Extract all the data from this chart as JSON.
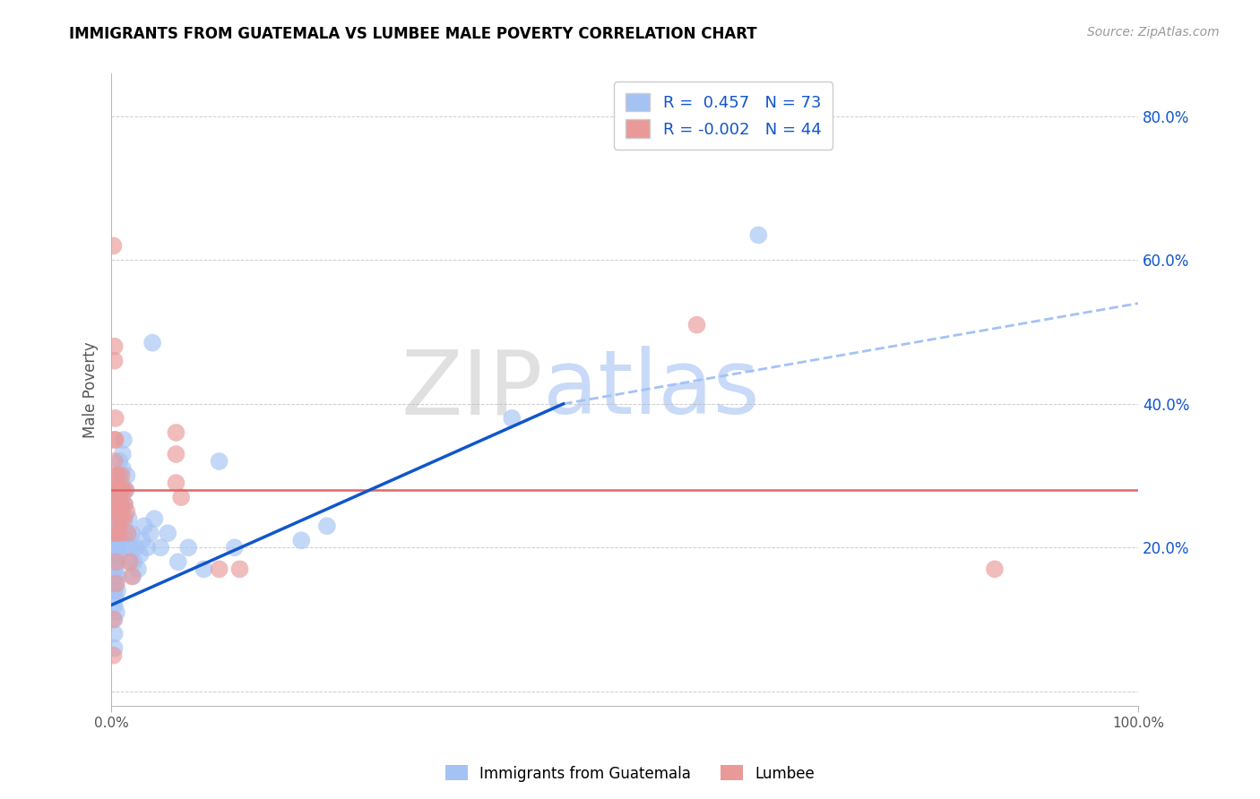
{
  "title": "IMMIGRANTS FROM GUATEMALA VS LUMBEE MALE POVERTY CORRELATION CHART",
  "source": "Source: ZipAtlas.com",
  "ylabel": "Male Poverty",
  "xlim": [
    0,
    1.0
  ],
  "ylim": [
    -0.02,
    0.86
  ],
  "ytick_positions": [
    0.0,
    0.2,
    0.4,
    0.6,
    0.8
  ],
  "yticklabels_right": [
    "",
    "20.0%",
    "40.0%",
    "60.0%",
    "80.0%"
  ],
  "blue_color": "#a4c2f4",
  "pink_color": "#ea9999",
  "blue_line_color": "#1155cc",
  "pink_line_color": "#e06666",
  "dashed_line_color": "#a4c2f4",
  "grid_color": "#b7b7b7",
  "title_color": "#000000",
  "source_color": "#999999",
  "right_tick_color": "#1155cc",
  "legend_r_blue": "0.457",
  "legend_n_blue": "73",
  "legend_r_pink": "-0.002",
  "legend_n_pink": "44",
  "legend_label_blue": "Immigrants from Guatemala",
  "legend_label_pink": "Lumbee",
  "watermark_zip": "ZIP",
  "watermark_atlas": "atlas",
  "blue_scatter": [
    [
      0.003,
      0.14
    ],
    [
      0.003,
      0.12
    ],
    [
      0.003,
      0.1
    ],
    [
      0.003,
      0.08
    ],
    [
      0.003,
      0.06
    ],
    [
      0.003,
      0.16
    ],
    [
      0.003,
      0.18
    ],
    [
      0.003,
      0.2
    ],
    [
      0.003,
      0.22
    ],
    [
      0.003,
      0.24
    ],
    [
      0.003,
      0.26
    ],
    [
      0.003,
      0.28
    ],
    [
      0.004,
      0.13
    ],
    [
      0.004,
      0.15
    ],
    [
      0.004,
      0.17
    ],
    [
      0.004,
      0.19
    ],
    [
      0.005,
      0.21
    ],
    [
      0.005,
      0.23
    ],
    [
      0.005,
      0.25
    ],
    [
      0.005,
      0.27
    ],
    [
      0.005,
      0.11
    ],
    [
      0.006,
      0.14
    ],
    [
      0.006,
      0.16
    ],
    [
      0.006,
      0.18
    ],
    [
      0.006,
      0.2
    ],
    [
      0.007,
      0.22
    ],
    [
      0.007,
      0.24
    ],
    [
      0.007,
      0.26
    ],
    [
      0.008,
      0.28
    ],
    [
      0.008,
      0.3
    ],
    [
      0.008,
      0.32
    ],
    [
      0.008,
      0.19
    ],
    [
      0.009,
      0.21
    ],
    [
      0.009,
      0.23
    ],
    [
      0.01,
      0.25
    ],
    [
      0.01,
      0.27
    ],
    [
      0.01,
      0.29
    ],
    [
      0.011,
      0.31
    ],
    [
      0.011,
      0.33
    ],
    [
      0.012,
      0.35
    ],
    [
      0.012,
      0.22
    ],
    [
      0.013,
      0.24
    ],
    [
      0.013,
      0.26
    ],
    [
      0.014,
      0.28
    ],
    [
      0.015,
      0.3
    ],
    [
      0.015,
      0.2
    ],
    [
      0.016,
      0.22
    ],
    [
      0.017,
      0.24
    ],
    [
      0.018,
      0.18
    ],
    [
      0.019,
      0.2
    ],
    [
      0.02,
      0.22
    ],
    [
      0.021,
      0.16
    ],
    [
      0.022,
      0.18
    ],
    [
      0.024,
      0.2
    ],
    [
      0.026,
      0.17
    ],
    [
      0.028,
      0.19
    ],
    [
      0.03,
      0.21
    ],
    [
      0.032,
      0.23
    ],
    [
      0.035,
      0.2
    ],
    [
      0.038,
      0.22
    ],
    [
      0.042,
      0.24
    ],
    [
      0.048,
      0.2
    ],
    [
      0.055,
      0.22
    ],
    [
      0.065,
      0.18
    ],
    [
      0.075,
      0.2
    ],
    [
      0.09,
      0.17
    ],
    [
      0.105,
      0.32
    ],
    [
      0.12,
      0.2
    ],
    [
      0.185,
      0.21
    ],
    [
      0.21,
      0.23
    ],
    [
      0.39,
      0.38
    ],
    [
      0.63,
      0.635
    ],
    [
      0.04,
      0.485
    ]
  ],
  "pink_scatter": [
    [
      0.002,
      0.1
    ],
    [
      0.002,
      0.05
    ],
    [
      0.002,
      0.62
    ],
    [
      0.003,
      0.48
    ],
    [
      0.003,
      0.46
    ],
    [
      0.003,
      0.35
    ],
    [
      0.003,
      0.32
    ],
    [
      0.004,
      0.28
    ],
    [
      0.004,
      0.38
    ],
    [
      0.004,
      0.25
    ],
    [
      0.004,
      0.22
    ],
    [
      0.004,
      0.35
    ],
    [
      0.005,
      0.3
    ],
    [
      0.005,
      0.26
    ],
    [
      0.005,
      0.22
    ],
    [
      0.005,
      0.18
    ],
    [
      0.005,
      0.15
    ],
    [
      0.005,
      0.28
    ],
    [
      0.006,
      0.25
    ],
    [
      0.006,
      0.3
    ],
    [
      0.007,
      0.28
    ],
    [
      0.007,
      0.24
    ],
    [
      0.008,
      0.26
    ],
    [
      0.008,
      0.22
    ],
    [
      0.009,
      0.28
    ],
    [
      0.009,
      0.24
    ],
    [
      0.01,
      0.3
    ],
    [
      0.01,
      0.26
    ],
    [
      0.011,
      0.28
    ],
    [
      0.012,
      0.24
    ],
    [
      0.013,
      0.26
    ],
    [
      0.014,
      0.28
    ],
    [
      0.015,
      0.25
    ],
    [
      0.016,
      0.22
    ],
    [
      0.018,
      0.18
    ],
    [
      0.02,
      0.16
    ],
    [
      0.063,
      0.36
    ],
    [
      0.063,
      0.33
    ],
    [
      0.063,
      0.29
    ],
    [
      0.068,
      0.27
    ],
    [
      0.105,
      0.17
    ],
    [
      0.125,
      0.17
    ],
    [
      0.57,
      0.51
    ],
    [
      0.86,
      0.17
    ]
  ],
  "blue_trend_x": [
    0.0,
    0.44
  ],
  "blue_trend_y": [
    0.12,
    0.4
  ],
  "pink_trend_y": 0.28,
  "dashed_trend_x": [
    0.44,
    1.0
  ],
  "dashed_trend_y": [
    0.4,
    0.54
  ]
}
